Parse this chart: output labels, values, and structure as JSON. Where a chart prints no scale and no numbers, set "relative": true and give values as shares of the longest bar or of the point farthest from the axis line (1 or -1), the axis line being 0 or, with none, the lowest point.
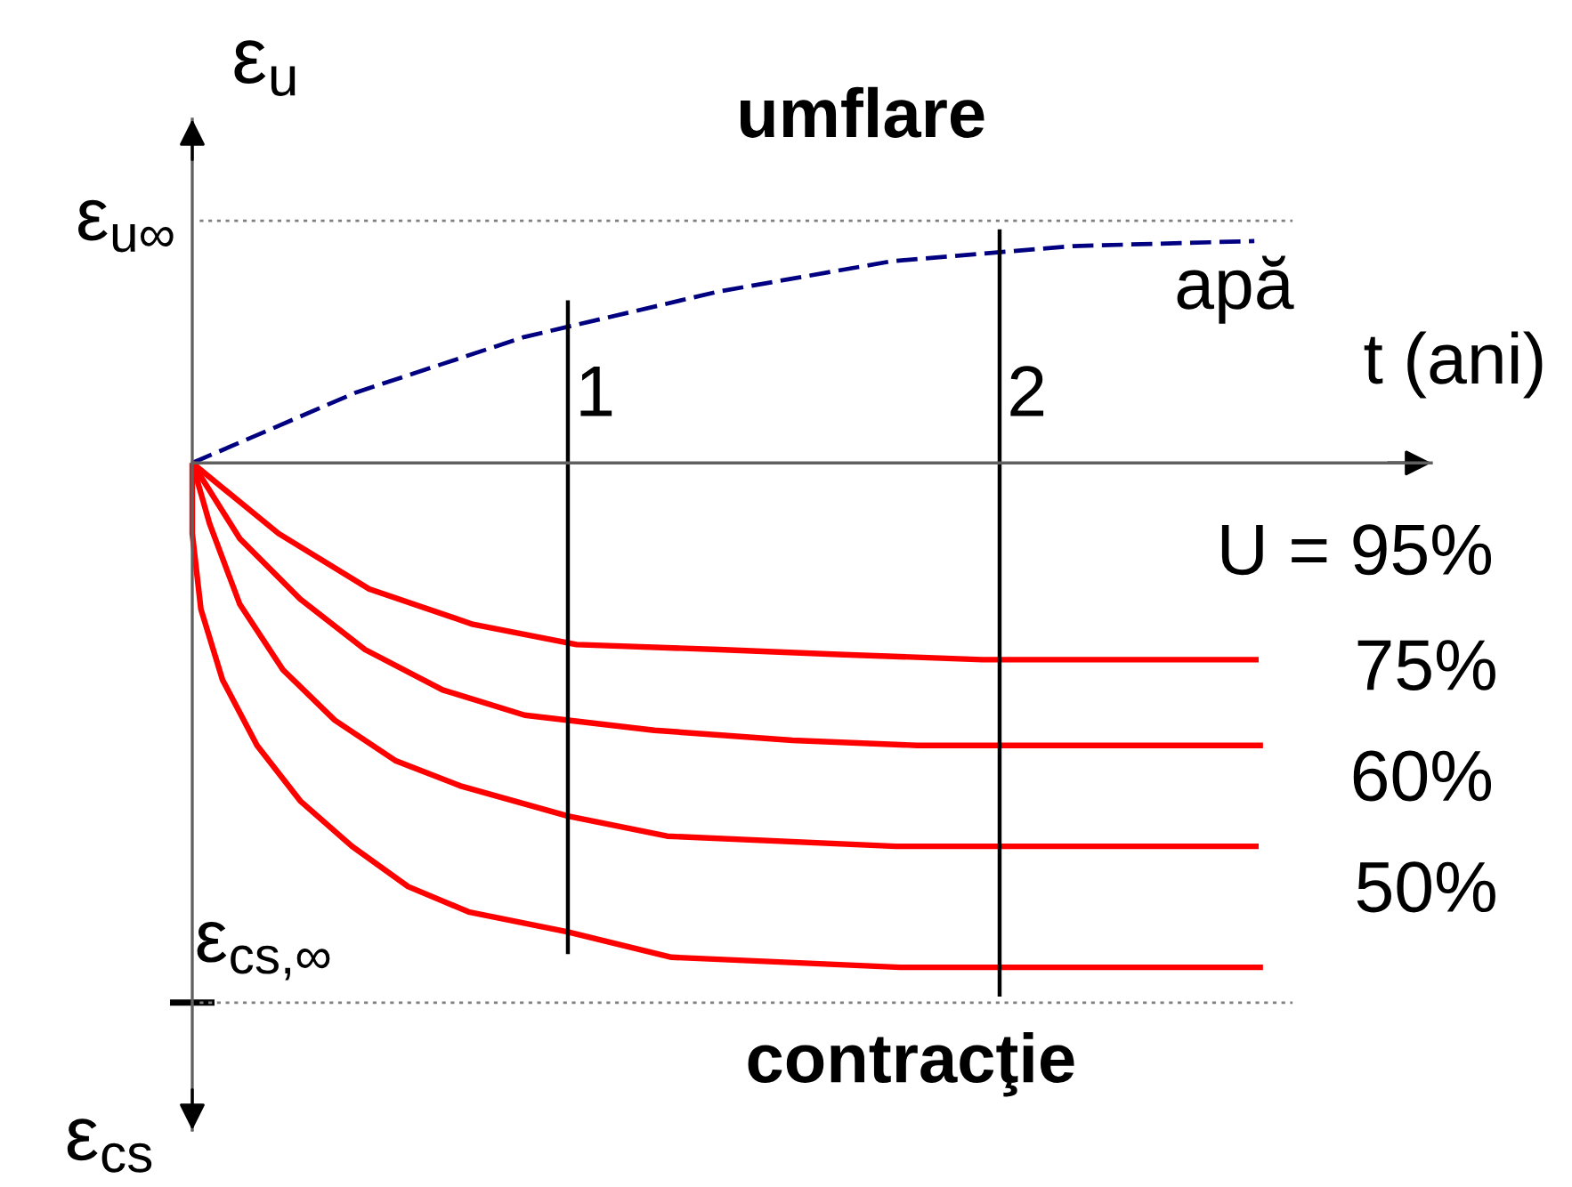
{
  "chart_data": {
    "type": "line",
    "relative": true,
    "xlabel": "t (ani)",
    "ylabel": "ε$_{u}$",
    "xlim": [
      0.13,
      3.0
    ],
    "xticks": [
      1,
      2
    ],
    "tick_labels": "x",
    "legend": false,
    "grid": false,
    "marker": "none",
    "line_style": "solid",
    "annotations": [
      "umflare",
      "contracţie",
      "ε$_{cs}$"
    ],
    "series": [
      {
        "name": "apă",
        "color": "#000080",
        "line_style": "dashed",
        "x": [
          0.13,
          0.51,
          0.9,
          1.35,
          1.75,
          2.17,
          2.59
        ],
        "values": [
          0,
          0.14,
          0.25,
          0.34,
          0.4,
          0.43,
          0.44
        ]
      },
      {
        "name": "U = 95%",
        "color": "#ff0000",
        "x": [
          0.13,
          0.33,
          0.54,
          0.78,
          1.02,
          1.35,
          1.64,
          1.96,
          2.6
        ],
        "values": [
          0,
          -0.14,
          -0.25,
          -0.32,
          -0.36,
          -0.37,
          -0.38,
          -0.39,
          -0.39
        ]
      },
      {
        "name": "75%",
        "color": "#ff0000",
        "x": [
          0.13,
          0.24,
          0.38,
          0.53,
          0.71,
          0.9,
          1.2,
          1.52,
          1.81,
          2.61
        ],
        "values": [
          0,
          -0.15,
          -0.27,
          -0.37,
          -0.45,
          -0.5,
          -0.53,
          -0.55,
          -0.56,
          -0.56
        ]
      },
      {
        "name": "60%",
        "color": "#ff0000",
        "x": [
          0.13,
          0.17,
          0.24,
          0.34,
          0.46,
          0.6,
          0.75,
          1.0,
          1.23,
          1.76,
          2.6
        ],
        "values": [
          0,
          -0.12,
          -0.28,
          -0.41,
          -0.51,
          -0.59,
          -0.64,
          -0.7,
          -0.74,
          -0.76,
          -0.76
        ]
      },
      {
        "name": "50%",
        "color": "#ff0000",
        "x": [
          0.13,
          0.13,
          0.15,
          0.2,
          0.28,
          0.38,
          0.5,
          0.63,
          0.77,
          1.0,
          1.24,
          1.77,
          2.61
        ],
        "values": [
          0,
          -0.14,
          -0.29,
          -0.43,
          -0.56,
          -0.67,
          -0.76,
          -0.84,
          -0.89,
          -0.93,
          -0.98,
          -1,
          -1
        ]
      }
    ],
    "ref_lines": [
      {
        "axis": "y",
        "value": 0.48,
        "label": "ε$_{u∞}$",
        "color": "#808080",
        "line_style": "dotted"
      },
      {
        "axis": "y",
        "value": -1.07,
        "label": "ε$_{cs,∞}$",
        "color": "#808080",
        "line_style": "dotted"
      },
      {
        "axis": "x",
        "value": 1,
        "label": null,
        "color": "#000000",
        "line_style": "solid"
      },
      {
        "axis": "x",
        "value": 2,
        "label": null,
        "color": "#000000",
        "line_style": "solid"
      }
    ]
  }
}
